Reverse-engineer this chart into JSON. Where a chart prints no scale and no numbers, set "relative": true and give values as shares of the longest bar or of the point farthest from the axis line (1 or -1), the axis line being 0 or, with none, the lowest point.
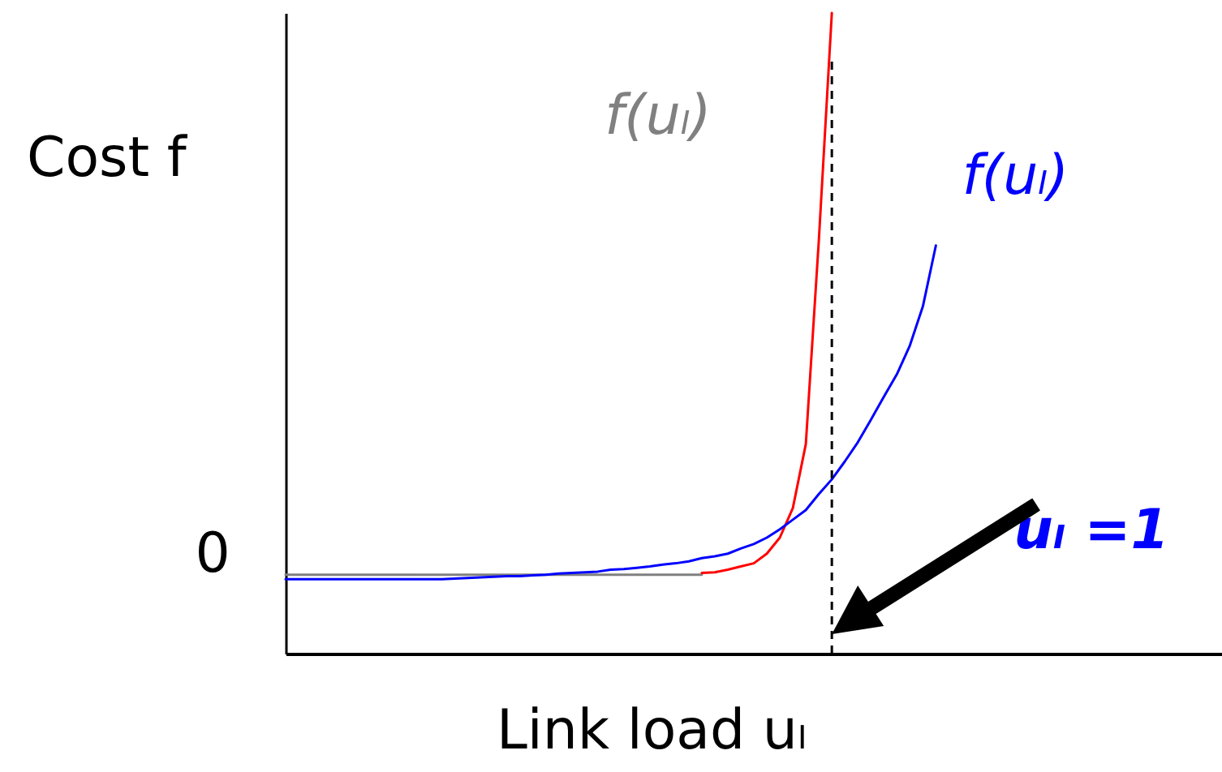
{
  "chart_data": {
    "type": "line",
    "relative": true,
    "xlabel": "Link load uₗ",
    "ylabel": "Cost f",
    "marker": "none",
    "categories": [
      null,
      null,
      null,
      null,
      null,
      null,
      null,
      null,
      null,
      null,
      null,
      null,
      null,
      null,
      null,
      null,
      null,
      null,
      null,
      null,
      null,
      null,
      null,
      null,
      null,
      null,
      null,
      null,
      null,
      null,
      null,
      null,
      null,
      null,
      null,
      null,
      null,
      null,
      null,
      null,
      null,
      null,
      null,
      null,
      null,
      null,
      null,
      null,
      null,
      null,
      null,
      null,
      null,
      null,
      null,
      null,
      null,
      null,
      null,
      null,
      null,
      null,
      null,
      null,
      null,
      null,
      null,
      null,
      null,
      null,
      null,
      null,
      null
    ],
    "series": [
      {
        "name": "f(uₗ)",
        "color": "#808080",
        "values": [
          0.123,
          0.123,
          0.123,
          0.123,
          0.123,
          0.123,
          0.123,
          0.123,
          0.123,
          0.123,
          0.123,
          0.123,
          0.123,
          0.123,
          0.123,
          0.123,
          0.123,
          0.123,
          0.123,
          0.123,
          0.123,
          0.123,
          0.123,
          0.123,
          0.123,
          0.123,
          0.123,
          0.123,
          0.123,
          0.123,
          0.123,
          0.123,
          0.123,
          null,
          null,
          null,
          null,
          null,
          null,
          null,
          null,
          null,
          null,
          null,
          null,
          null,
          null,
          null,
          null,
          null,
          null,
          null,
          null,
          null,
          null,
          null,
          null,
          null,
          null,
          null,
          null,
          null,
          null,
          null,
          null,
          null,
          null,
          null,
          null,
          null,
          null,
          null,
          null
        ]
      },
      {
        "color": "#ff0000",
        "values": [
          null,
          null,
          null,
          null,
          null,
          null,
          null,
          null,
          null,
          null,
          null,
          null,
          null,
          null,
          null,
          null,
          null,
          null,
          null,
          null,
          null,
          null,
          null,
          null,
          null,
          null,
          null,
          null,
          null,
          null,
          null,
          null,
          0.126,
          0.127,
          0.131,
          0.136,
          0.141,
          0.156,
          0.181,
          0.227,
          0.327,
          0.645,
          1.0,
          null,
          null,
          null,
          null,
          null,
          null,
          null,
          null,
          null,
          null,
          null,
          null,
          null,
          null,
          null,
          null,
          null,
          null,
          null,
          null,
          null,
          null,
          null,
          null,
          null,
          null,
          null,
          null,
          null,
          null
        ]
      },
      {
        "name": "f(uₗ)",
        "color": "#0000ff",
        "values": [
          0.116,
          0.116,
          0.116,
          0.116,
          0.116,
          0.116,
          0.116,
          0.116,
          0.116,
          0.116,
          0.116,
          0.116,
          0.116,
          0.117,
          0.118,
          0.119,
          0.12,
          0.121,
          0.121,
          0.122,
          0.123,
          0.125,
          0.126,
          0.127,
          0.128,
          0.131,
          0.132,
          0.134,
          0.136,
          0.139,
          0.141,
          0.144,
          0.149,
          0.152,
          0.156,
          0.164,
          0.171,
          0.181,
          0.194,
          0.209,
          0.224,
          0.249,
          0.272,
          0.3,
          0.33,
          0.365,
          0.401,
          0.436,
          0.481,
          0.542,
          0.637,
          null,
          null,
          null,
          null,
          null,
          null,
          null,
          null,
          null,
          null,
          null,
          null,
          null,
          null,
          null,
          null,
          null,
          null,
          null,
          null,
          null,
          null
        ]
      }
    ],
    "annotations": [
      "0",
      "uₗ =1"
    ]
  }
}
